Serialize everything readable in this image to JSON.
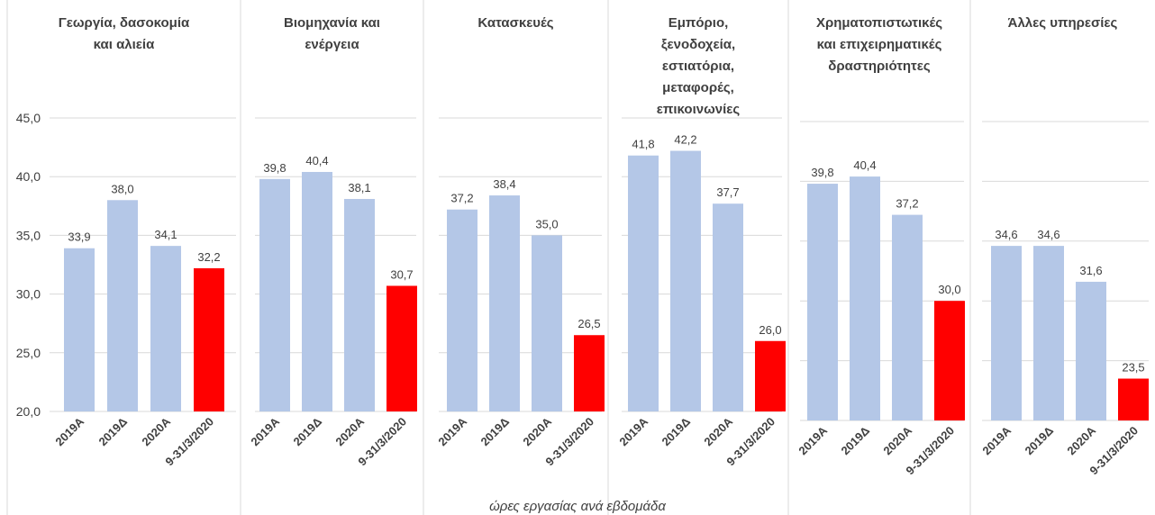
{
  "xlabel": "ώρες εργασίας ανά εβδομάδα",
  "chart_data": [
    {
      "type": "bar",
      "title": "Γεωργία, δασοκομία\nκαι αλιεία",
      "categories": [
        "2019Α",
        "2019Δ",
        "2020Α",
        "9-31/3/2020"
      ],
      "values": [
        33.9,
        38.0,
        34.1,
        32.2
      ],
      "value_labels": [
        "33,9",
        "38,0",
        "34,1",
        "32,2"
      ],
      "colors": [
        "#b4c7e7",
        "#b4c7e7",
        "#b4c7e7",
        "#ff0000"
      ],
      "ylim": [
        20,
        45
      ],
      "yticks": [
        {
          "value": 20,
          "label": "20,0"
        },
        {
          "value": 25,
          "label": "25,0"
        },
        {
          "value": 30,
          "label": "30,0"
        },
        {
          "value": 35,
          "label": "35,0"
        },
        {
          "value": 40,
          "label": "40,0"
        },
        {
          "value": 45,
          "label": "45,0"
        }
      ],
      "grid": true
    },
    {
      "type": "bar",
      "title": "Βιομηχανία και\nενέργεια",
      "categories": [
        "2019Α",
        "2019Δ",
        "2020Α",
        "9-31/3/2020"
      ],
      "values": [
        39.8,
        40.4,
        38.1,
        30.7
      ],
      "value_labels": [
        "39,8",
        "40,4",
        "38,1",
        "30,7"
      ],
      "colors": [
        "#b4c7e7",
        "#b4c7e7",
        "#b4c7e7",
        "#ff0000"
      ],
      "ylim": [
        20,
        45
      ],
      "yticks": [
        20,
        25,
        30,
        35,
        40,
        45
      ],
      "grid": true
    },
    {
      "type": "bar",
      "title": "Κατασκευές",
      "categories": [
        "2019Α",
        "2019Δ",
        "2020Α",
        "9-31/3/2020"
      ],
      "values": [
        37.2,
        38.4,
        35.0,
        26.5
      ],
      "value_labels": [
        "37,2",
        "38,4",
        "35,0",
        "26,5"
      ],
      "colors": [
        "#b4c7e7",
        "#b4c7e7",
        "#b4c7e7",
        "#ff0000"
      ],
      "ylim": [
        20,
        45
      ],
      "yticks": [
        20,
        25,
        30,
        35,
        40,
        45
      ],
      "grid": true
    },
    {
      "type": "bar",
      "title": "Εμπόριο,\nξενοδοχεία,\nεστιατόρια,\nμεταφορές,\nεπικοινωνίες",
      "categories": [
        "2019Α",
        "2019Δ",
        "2020Α",
        "9-31/3/2020"
      ],
      "values": [
        41.8,
        42.2,
        37.7,
        26.0
      ],
      "value_labels": [
        "41,8",
        "42,2",
        "37,7",
        "26,0"
      ],
      "colors": [
        "#b4c7e7",
        "#b4c7e7",
        "#b4c7e7",
        "#ff0000"
      ],
      "ylim": [
        20,
        45
      ],
      "yticks": [
        20,
        25,
        30,
        35,
        40,
        45
      ],
      "grid": true
    },
    {
      "type": "bar",
      "title": "Χρηματοπιστωτικές\nκαι επιχειρηματικές\nδραστηριότητες",
      "categories": [
        "2019Α",
        "2019Δ",
        "2020Α",
        "9-31/3/2020"
      ],
      "values": [
        39.8,
        40.4,
        37.2,
        30.0
      ],
      "value_labels": [
        "39,8",
        "40,4",
        "37,2",
        "30,0"
      ],
      "colors": [
        "#b4c7e7",
        "#b4c7e7",
        "#b4c7e7",
        "#ff0000"
      ],
      "ylim": [
        20,
        45
      ],
      "yticks": [
        20,
        25,
        30,
        35,
        40,
        45
      ],
      "grid": true
    },
    {
      "type": "bar",
      "title": "Άλλες υπηρεσίες",
      "categories": [
        "2019Α",
        "2019Δ",
        "2020Α",
        "9-31/3/2020"
      ],
      "values": [
        34.6,
        34.6,
        31.6,
        23.5
      ],
      "value_labels": [
        "34,6",
        "34,6",
        "31,6",
        "23,5"
      ],
      "colors": [
        "#b4c7e7",
        "#b4c7e7",
        "#b4c7e7",
        "#ff0000"
      ],
      "ylim": [
        20,
        45
      ],
      "yticks": [
        20,
        25,
        30,
        35,
        40,
        45
      ],
      "grid": true
    }
  ]
}
